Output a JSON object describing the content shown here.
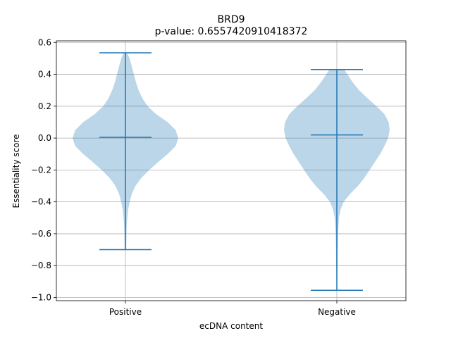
{
  "chart_data": {
    "type": "violin",
    "title": "BRD9",
    "subtitle": "p-value: 0.6557420910418372",
    "xlabel": "ecDNA content",
    "ylabel": "Essentiality score",
    "categories": [
      "Positive",
      "Negative"
    ],
    "ylim": [
      -1.02,
      0.61
    ],
    "yticks": [
      -1.0,
      -0.8,
      -0.6,
      -0.4,
      -0.2,
      0.0,
      0.2,
      0.4,
      0.6
    ],
    "ytick_labels": [
      "−1.0",
      "−0.8",
      "−0.6",
      "−0.4",
      "−0.2",
      "0.0",
      "0.2",
      "0.4",
      "0.6"
    ],
    "grid": true,
    "violins": [
      {
        "category": "Positive",
        "min": -0.7,
        "median": 0.005,
        "max": 0.535,
        "profile": [
          [
            -0.7,
            0.015
          ],
          [
            -0.65,
            0.018
          ],
          [
            -0.6,
            0.02
          ],
          [
            -0.55,
            0.025
          ],
          [
            -0.5,
            0.035
          ],
          [
            -0.45,
            0.05
          ],
          [
            -0.4,
            0.08
          ],
          [
            -0.35,
            0.12
          ],
          [
            -0.3,
            0.19
          ],
          [
            -0.25,
            0.3
          ],
          [
            -0.2,
            0.45
          ],
          [
            -0.15,
            0.62
          ],
          [
            -0.1,
            0.8
          ],
          [
            -0.05,
            0.95
          ],
          [
            0.0,
            1.0
          ],
          [
            0.05,
            0.95
          ],
          [
            0.1,
            0.8
          ],
          [
            0.15,
            0.58
          ],
          [
            0.2,
            0.42
          ],
          [
            0.25,
            0.32
          ],
          [
            0.3,
            0.25
          ],
          [
            0.35,
            0.2
          ],
          [
            0.4,
            0.16
          ],
          [
            0.45,
            0.12
          ],
          [
            0.5,
            0.08
          ],
          [
            0.535,
            0.03
          ]
        ]
      },
      {
        "category": "Negative",
        "min": -0.955,
        "median": 0.02,
        "max": 0.43,
        "profile": [
          [
            -0.955,
            0.005
          ],
          [
            -0.9,
            0.008
          ],
          [
            -0.8,
            0.012
          ],
          [
            -0.7,
            0.016
          ],
          [
            -0.6,
            0.022
          ],
          [
            -0.5,
            0.04
          ],
          [
            -0.45,
            0.07
          ],
          [
            -0.4,
            0.13
          ],
          [
            -0.35,
            0.25
          ],
          [
            -0.3,
            0.4
          ],
          [
            -0.25,
            0.52
          ],
          [
            -0.2,
            0.62
          ],
          [
            -0.15,
            0.72
          ],
          [
            -0.1,
            0.82
          ],
          [
            -0.05,
            0.9
          ],
          [
            0.0,
            0.97
          ],
          [
            0.05,
            1.0
          ],
          [
            0.1,
            0.98
          ],
          [
            0.15,
            0.9
          ],
          [
            0.2,
            0.75
          ],
          [
            0.25,
            0.58
          ],
          [
            0.3,
            0.42
          ],
          [
            0.35,
            0.3
          ],
          [
            0.4,
            0.2
          ],
          [
            0.43,
            0.14
          ]
        ]
      }
    ],
    "colors": {
      "body": "#1f77b4",
      "lines": "#1f77b4",
      "grid": "#b0b0b0"
    }
  }
}
